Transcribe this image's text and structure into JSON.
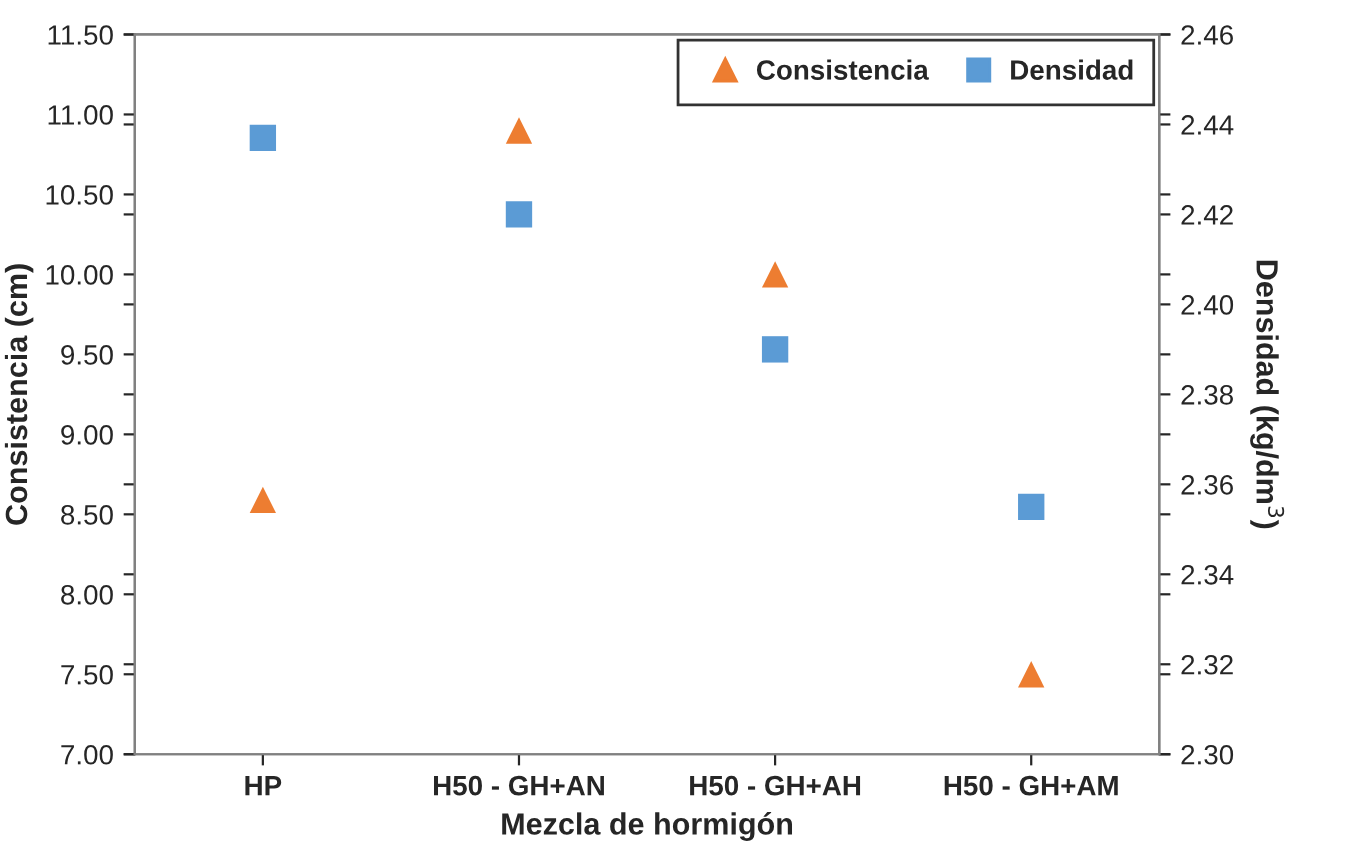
{
  "chart_data": {
    "type": "scatter",
    "xlabel": "Mezcla de hormigón",
    "ylabel": "Consistencia (cm)",
    "y2label": "Densidad (kg/dm$^{3}$)",
    "categories": [
      "HP",
      "H50 - GH+AN",
      "H50 - GH+AH",
      "H50 - GH+AM"
    ],
    "series": [
      {
        "name": "Consistencia",
        "color": "#ed7d31",
        "marker": "triangle",
        "values": [
          8.59,
          10.9,
          10.0,
          7.5
        ]
      },
      {
        "name": "Densidad",
        "color": "#5b9bd5",
        "marker": "square",
        "axis": "y2",
        "values": [
          2.437,
          2.42,
          2.39,
          2.355
        ]
      }
    ],
    "ylim": [
      7.0,
      11.5
    ],
    "yticks": [
      {
        "value": 7.0,
        "label": "7.00"
      },
      {
        "value": 7.5,
        "label": "7.50"
      },
      {
        "value": 8.0,
        "label": "8.00"
      },
      {
        "value": 8.5,
        "label": "8.50"
      },
      {
        "value": 9.0,
        "label": "9.00"
      },
      {
        "value": 9.5,
        "label": "9.50"
      },
      {
        "value": 10.0,
        "label": "10.00"
      },
      {
        "value": 10.5,
        "label": "10.50"
      },
      {
        "value": 11.0,
        "label": "11.00"
      },
      {
        "value": 11.5,
        "label": "11.50"
      }
    ],
    "y2lim": [
      2.3,
      2.46
    ],
    "y2ticks": [
      {
        "value": 2.3,
        "label": "2.30"
      },
      {
        "value": 2.32,
        "label": "2.32"
      },
      {
        "value": 2.34,
        "label": "2.34"
      },
      {
        "value": 2.36,
        "label": "2.36"
      },
      {
        "value": 2.38,
        "label": "2.38"
      },
      {
        "value": 2.4,
        "label": "2.40"
      },
      {
        "value": 2.42,
        "label": "2.42"
      },
      {
        "value": 2.44,
        "label": "2.44"
      },
      {
        "value": 2.46,
        "label": "2.46"
      }
    ],
    "grid": false,
    "legend": "top right"
  }
}
